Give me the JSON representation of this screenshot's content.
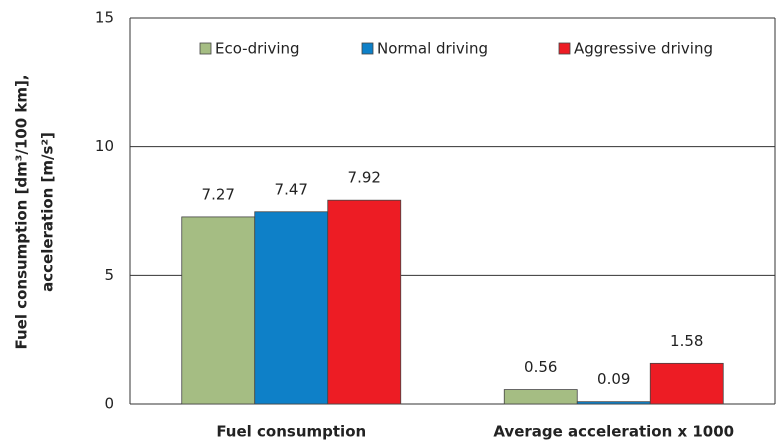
{
  "chart_data": {
    "type": "bar",
    "ylabel": [
      "Fuel consumption [dm³/100 km],",
      "acceleration [m/s²]"
    ],
    "categories": [
      "Fuel consumption",
      "Average acceleration x 1000"
    ],
    "series": [
      {
        "name": "Eco-driving",
        "color": "#a5bd83",
        "values": [
          7.27,
          0.56
        ]
      },
      {
        "name": "Normal driving",
        "color": "#0e80c8",
        "values": [
          7.47,
          0.09
        ]
      },
      {
        "name": "Aggressive driving",
        "color": "#ed1c24",
        "values": [
          7.92,
          1.58
        ]
      }
    ],
    "ylim": [
      0,
      15
    ],
    "yticks": [
      0,
      5,
      10,
      15
    ],
    "grid": true,
    "legend": "top"
  }
}
